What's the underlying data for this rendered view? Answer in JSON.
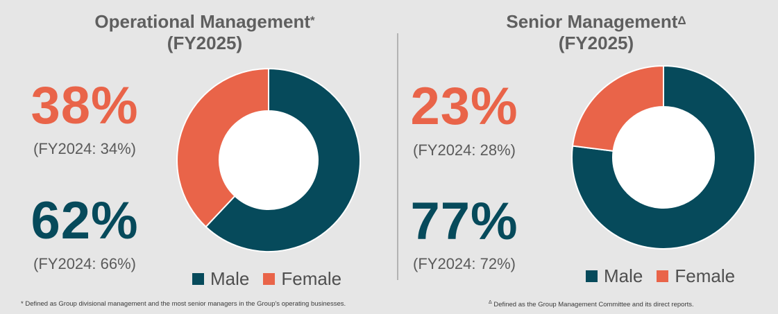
{
  "colors": {
    "male": "#064a5b",
    "female": "#e96449",
    "background": "#e6e6e6"
  },
  "legend": {
    "male": "Male",
    "female": "Female"
  },
  "panels": [
    {
      "title_line1": "Operational Management",
      "title_mark": "*",
      "title_line2": "(FY2025)",
      "female_pct": "38%",
      "female_prev": "(FY2024: 34%)",
      "male_pct": "62%",
      "male_prev": "(FY2024: 66%)",
      "footnote_mark": "*",
      "footnote": "Defined as Group divisional management and the most senior managers in the Group's operating businesses."
    },
    {
      "title_line1": "Senior Management",
      "title_mark": "Δ",
      "title_line2": "(FY2025)",
      "female_pct": "23%",
      "female_prev": "(FY2024: 28%)",
      "male_pct": "77%",
      "male_prev": "(FY2024: 72%)",
      "footnote_mark": "Δ",
      "footnote": "Defined as the Group Management Committee and its direct reports."
    }
  ],
  "chart_data": [
    {
      "type": "pie",
      "title": "Operational Management* (FY2025)",
      "categories": [
        "Male",
        "Female"
      ],
      "values": [
        62,
        38
      ],
      "unit": "%",
      "previous": {
        "label": "FY2024",
        "values": [
          66,
          34
        ]
      },
      "donut": true,
      "legend": "bottom"
    },
    {
      "type": "pie",
      "title": "Senior ManagementΔ (FY2025)",
      "categories": [
        "Male",
        "Female"
      ],
      "values": [
        77,
        23
      ],
      "unit": "%",
      "previous": {
        "label": "FY2024",
        "values": [
          72,
          28
        ]
      },
      "donut": true,
      "legend": "bottom"
    }
  ]
}
